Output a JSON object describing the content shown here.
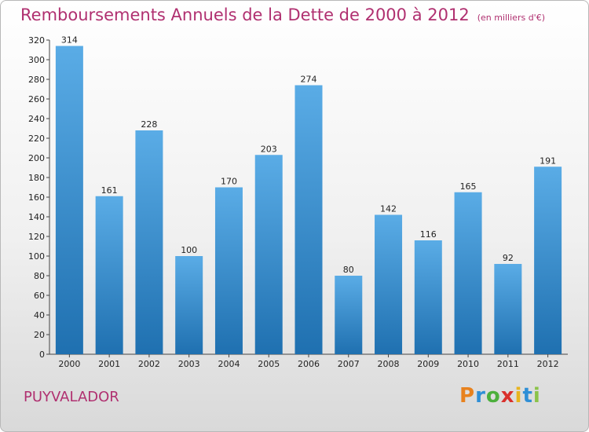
{
  "chart_data": {
    "type": "bar",
    "title": "Remboursements Annuels de la Dette de 2000 à 2012",
    "unit": "(en milliers d'€)",
    "categories": [
      "2000",
      "2001",
      "2002",
      "2003",
      "2004",
      "2005",
      "2006",
      "2007",
      "2008",
      "2009",
      "2010",
      "2011",
      "2012"
    ],
    "values": [
      314,
      161,
      228,
      100,
      170,
      203,
      274,
      80,
      142,
      116,
      165,
      92,
      191
    ],
    "ylim": [
      0,
      320
    ],
    "ytick_step": 20,
    "grid": false,
    "colors": {
      "bar_top": "#5aace6",
      "bar_bottom": "#1f70b0",
      "accent": "#b03070"
    }
  },
  "location": "PUYVALADOR",
  "logo": {
    "letters": [
      "P",
      "r",
      "o",
      "x",
      "i",
      "t",
      "i"
    ],
    "colors": [
      "#e8821e",
      "#2f8fd6",
      "#4caf3c",
      "#d9302c",
      "#e8b41e",
      "#2f8fd6",
      "#8bc34a"
    ]
  }
}
